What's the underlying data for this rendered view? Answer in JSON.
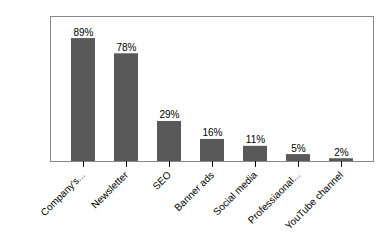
{
  "chart_data": {
    "type": "bar",
    "categories": [
      "Company's...",
      "Newsletter",
      "SEO",
      "Banner ads",
      "Social media",
      "Professiaonal...",
      "YouTube channel"
    ],
    "values": [
      89,
      78,
      29,
      16,
      11,
      5,
      2
    ],
    "value_labels": [
      "89%",
      "78%",
      "29%",
      "16%",
      "11%",
      "5%",
      "2%"
    ],
    "color": "#595959",
    "ylim": [
      0,
      105
    ],
    "data_labels": true,
    "tick_labels": "x"
  }
}
